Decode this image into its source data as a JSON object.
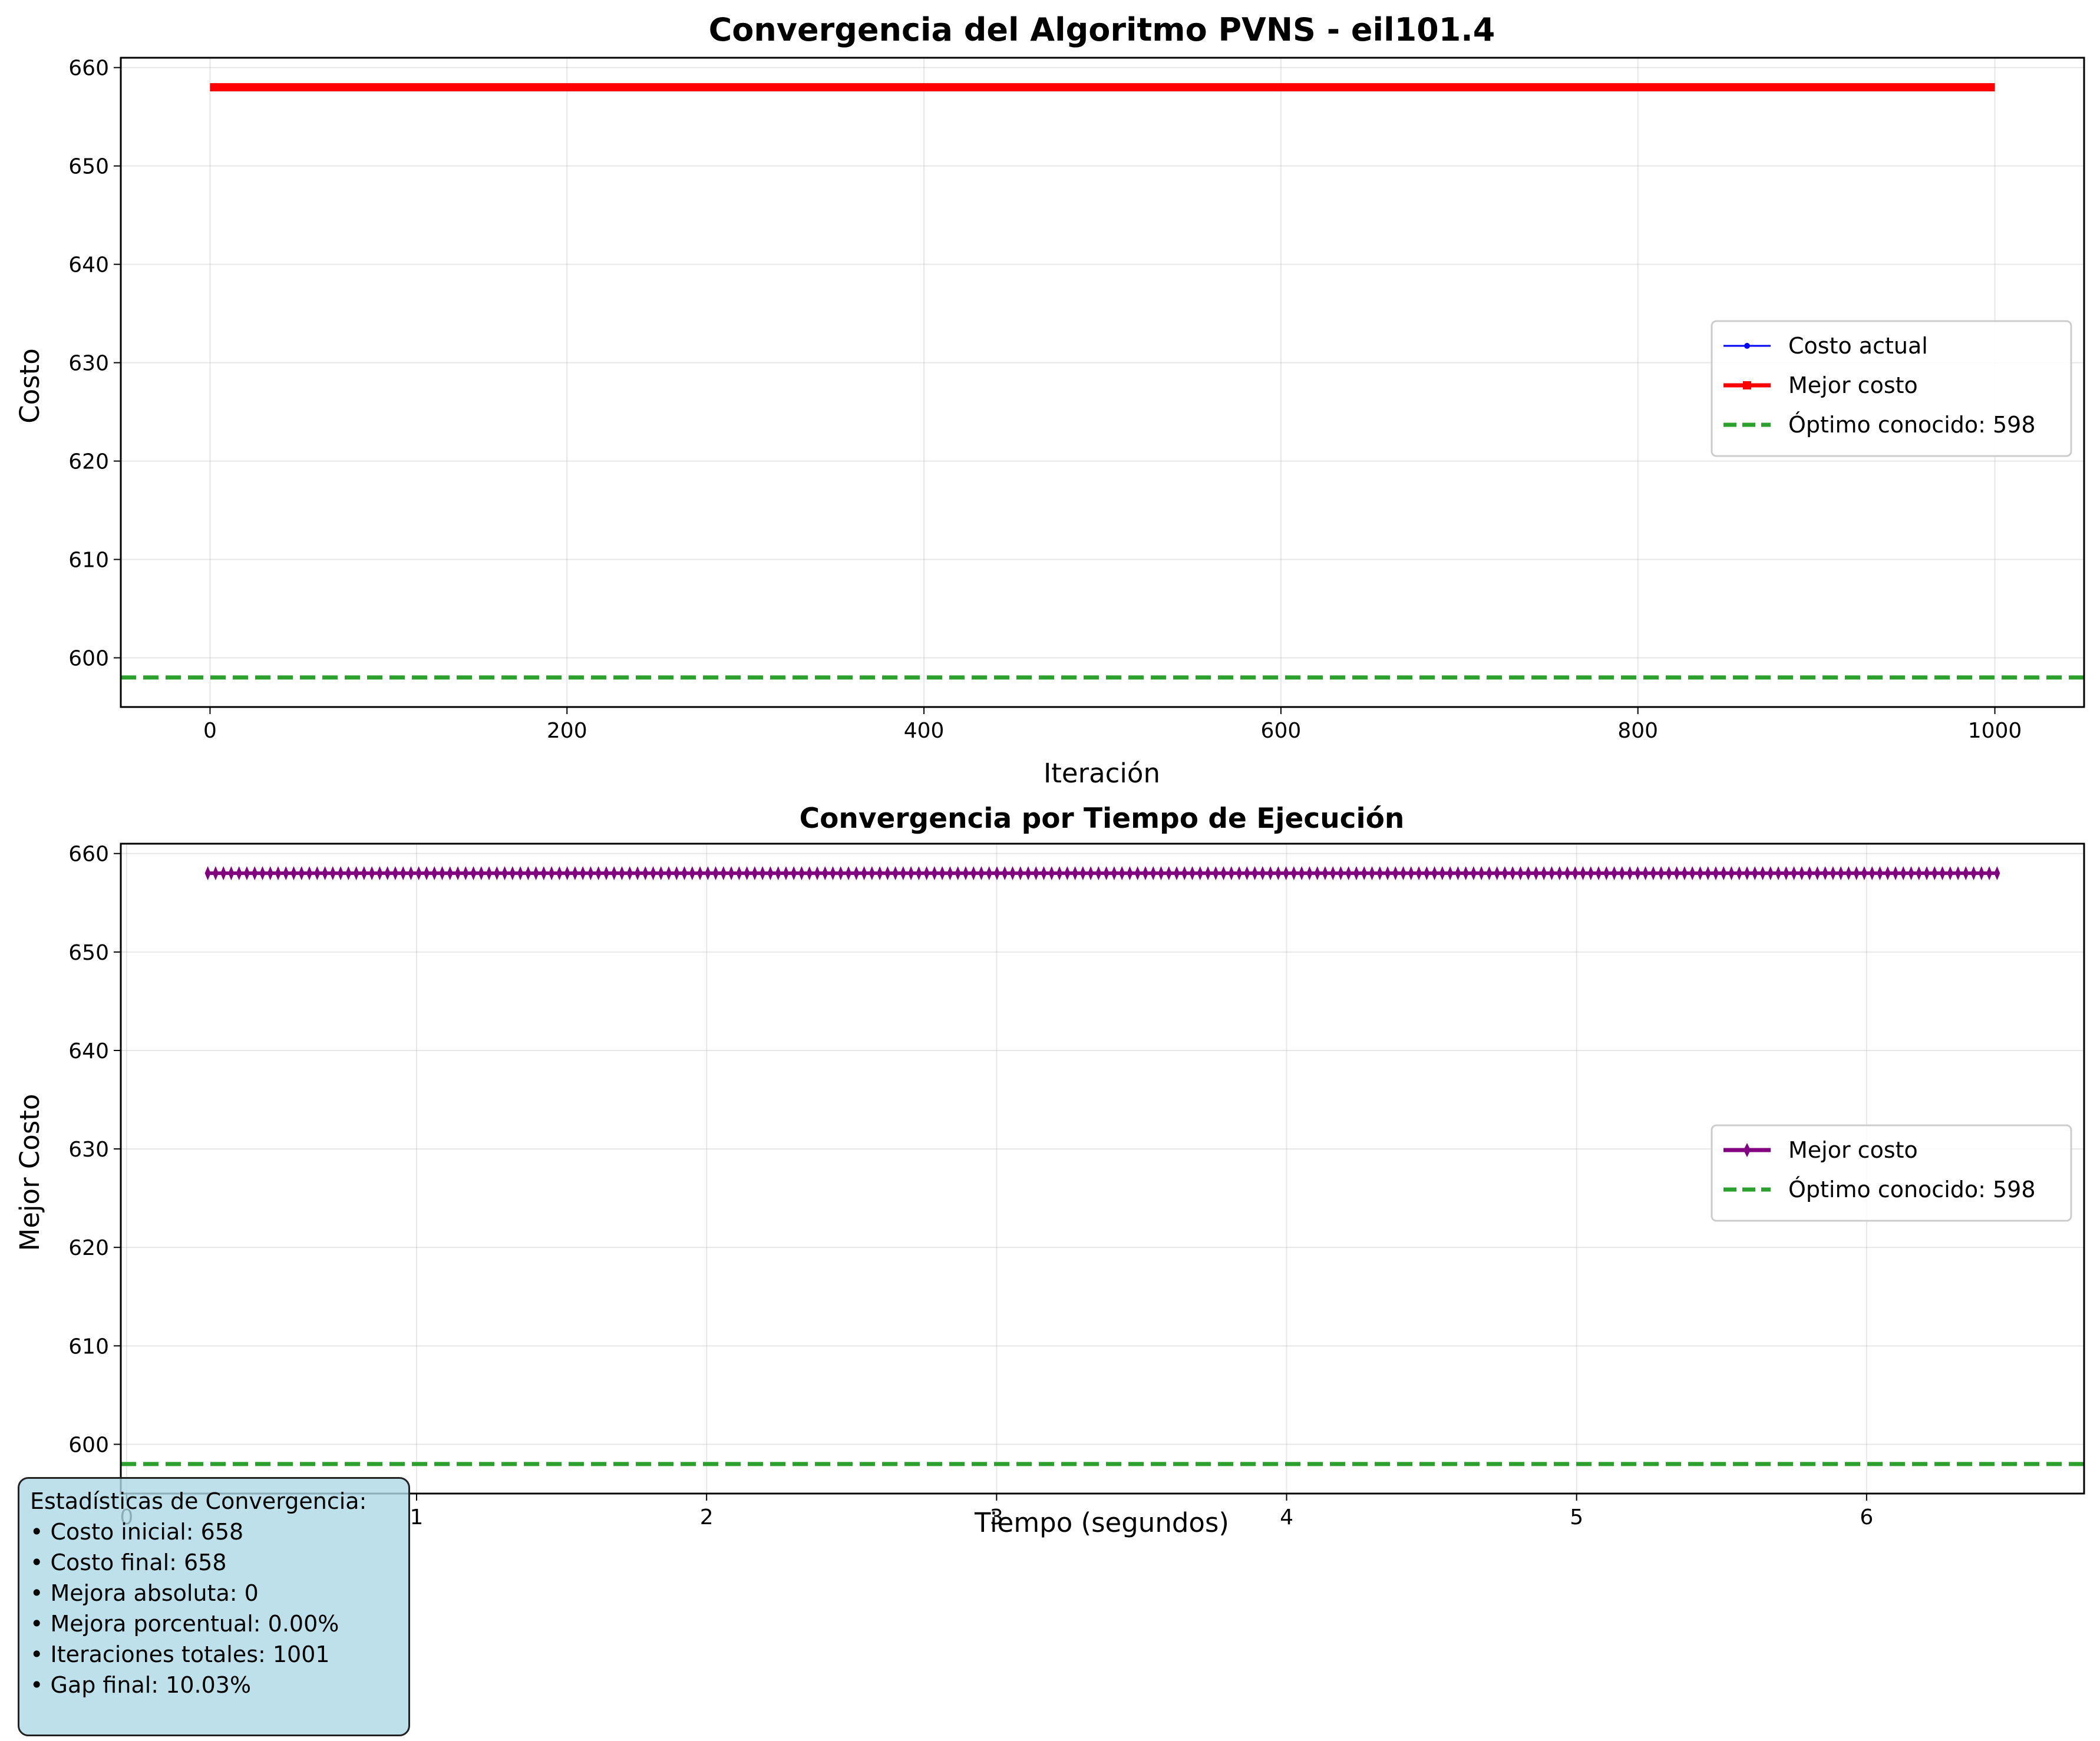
{
  "chart_data": [
    {
      "type": "line",
      "title": "Convergencia del Algoritmo PVNS - eil101.4",
      "xlabel": "Iteración",
      "ylabel": "Costo",
      "xlim": [
        -50,
        1050
      ],
      "ylim": [
        595,
        661
      ],
      "xticks": [
        "0",
        "200",
        "400",
        "600",
        "800",
        "1000"
      ],
      "yticks": [
        "600",
        "610",
        "620",
        "630",
        "640",
        "650",
        "660"
      ],
      "grid": true,
      "legend_position": "center-right",
      "series": [
        {
          "name": "Costo actual",
          "color": "#0000ff",
          "x": [
            0,
            1000
          ],
          "y": [
            658,
            658
          ]
        },
        {
          "name": "Mejor costo",
          "color": "#ff0000",
          "x": [
            0,
            1000
          ],
          "y": [
            658,
            658
          ]
        }
      ],
      "reference_line": {
        "name": "Óptimo conocido: 598",
        "value": 598,
        "color": "#2ca02c",
        "style": "dashed"
      }
    },
    {
      "type": "line",
      "title": "Convergencia por Tiempo de Ejecución",
      "xlabel": "Tiempo (segundos)",
      "ylabel": "Mejor Costo",
      "xlim": [
        -0.02,
        6.75
      ],
      "ylim": [
        595,
        661
      ],
      "xticks": [
        "0",
        "1",
        "2",
        "3",
        "4",
        "5",
        "6"
      ],
      "yticks": [
        "600",
        "610",
        "620",
        "630",
        "640",
        "650",
        "660"
      ],
      "grid": true,
      "legend_position": "center-right",
      "series": [
        {
          "name": "Mejor costo",
          "color": "#800080",
          "marker": "diamond",
          "x_start": 0.28,
          "x_end": 6.45,
          "y": 658
        }
      ],
      "reference_line": {
        "name": "Óptimo conocido: 598",
        "value": 598,
        "color": "#2ca02c",
        "style": "dashed"
      }
    }
  ],
  "stats": {
    "title": "Estadísticas de Convergencia:",
    "lines": [
      "• Costo inicial: 658",
      "• Costo final: 658",
      "• Mejora absoluta: 0",
      "• Mejora porcentual: 0.00%",
      "• Iteraciones totales: 1001",
      "• Gap final: 10.03%"
    ]
  }
}
